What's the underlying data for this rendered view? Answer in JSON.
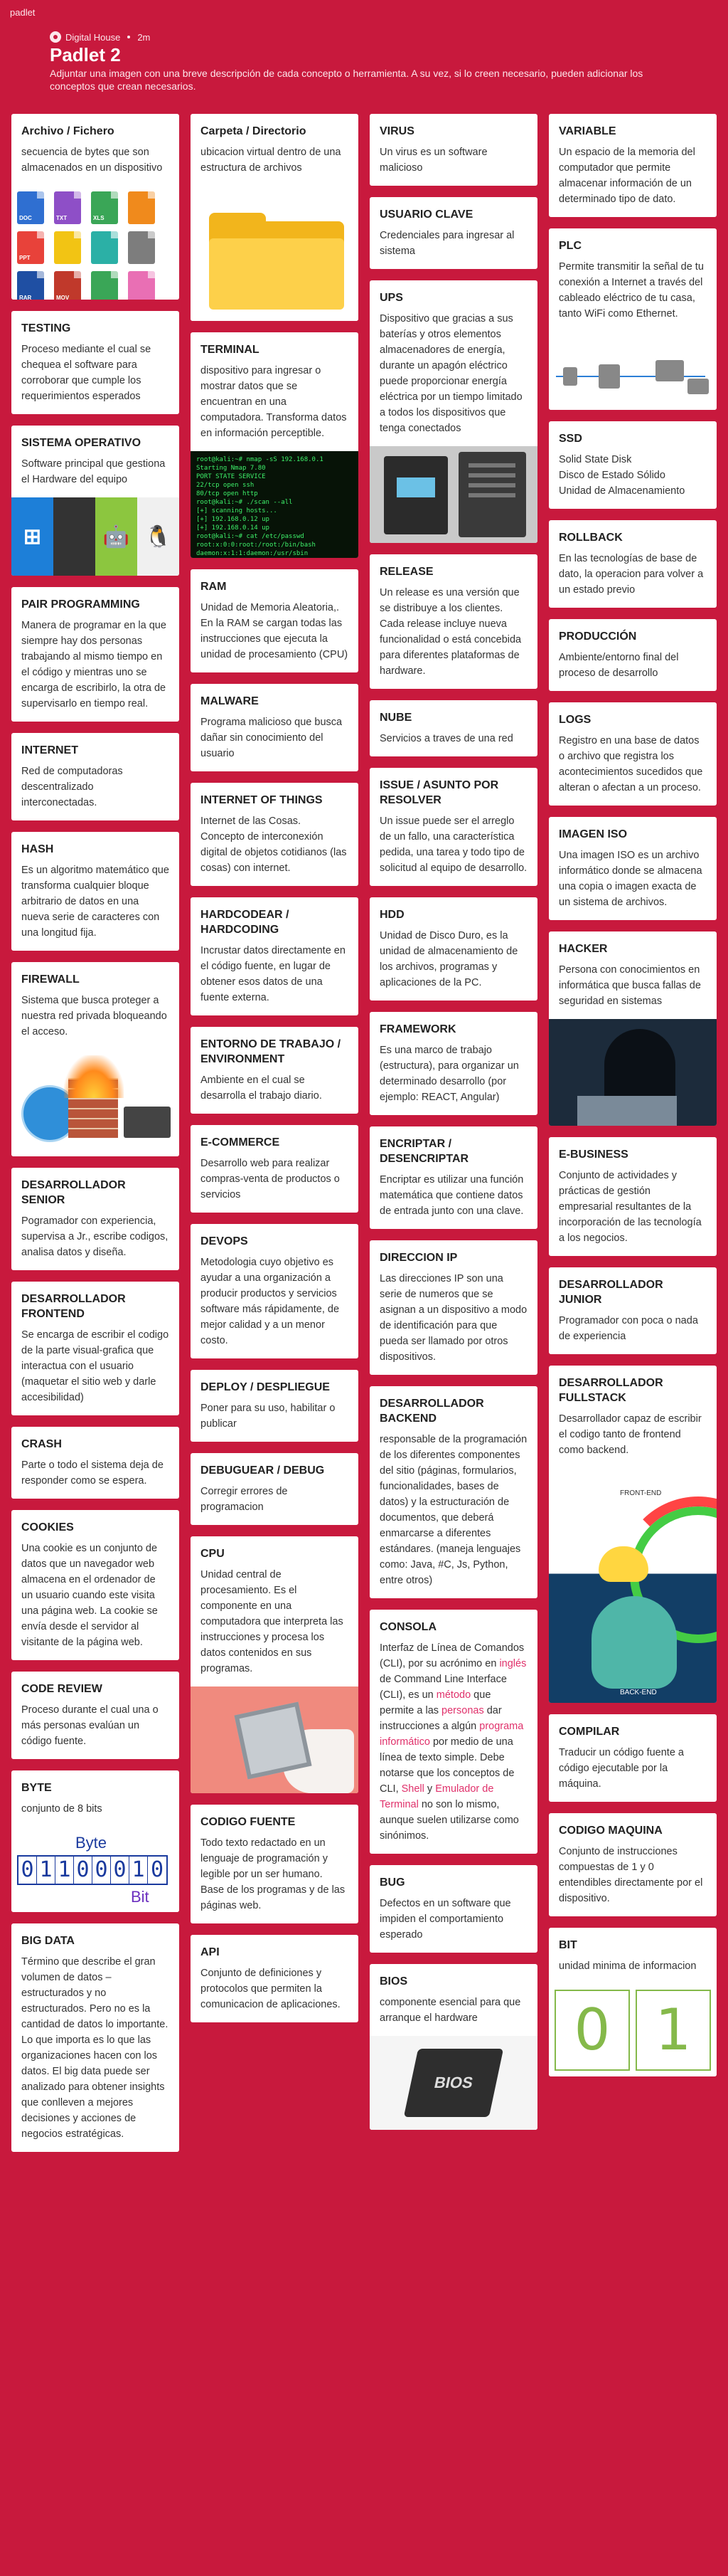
{
  "topbar": "padlet",
  "header": {
    "author": "Digital House",
    "time": "2m",
    "title": "Padlet 2",
    "description": "Adjuntar una imagen con una breve descripción de cada concepto o herramienta. A su vez, si lo creen necesario, pueden adicionar los conceptos que crean necesarios."
  },
  "icons": {
    "avatar": "digital-house-avatar",
    "windows": "⊞",
    "apple": "",
    "android": "🤖",
    "linux": "🐧"
  },
  "colors": {
    "background": "#c8193d",
    "highlight": "#e0316b"
  },
  "columns": [
    [
      {
        "title": "Archivo / Fichero",
        "body": "secuencia de bytes que son almacenados en un dispositivo",
        "image": "files"
      },
      {
        "title": "TESTING",
        "body": "Proceso mediante el cual se chequea el software para corroborar que cumple los requerimientos esperados"
      },
      {
        "title": "SISTEMA OPERATIVO",
        "body": "Software principal que gestiona el Hardware del equipo",
        "image": "os"
      },
      {
        "title": "PAIR PROGRAMMING",
        "body": "Manera de programar en la que siempre hay dos personas trabajando al mismo tiempo en el código y mientras uno se encarga de escribirlo,  la otra de supervisarlo en tiempo real."
      },
      {
        "title": "INTERNET",
        "body": "Red de computadoras descentralizado interconectadas."
      },
      {
        "title": "HASH",
        "body": "Es un algoritmo matemático que transforma cualquier bloque arbitrario de datos en una nueva serie de caracteres con una longitud fija."
      },
      {
        "title": "FIREWALL",
        "body": "Sistema que busca proteger a nuestra red privada bloqueando el acceso.",
        "image": "firewall"
      },
      {
        "title": "DESARROLLADOR SENIOR",
        "body": "Pogramador con experiencia, supervisa a Jr., escribe codigos, analisa datos y diseña."
      },
      {
        "title": "DESARROLLADOR FRONTEND",
        "body": "Se encarga de escribir el codigo de la parte visual-grafica que interactua con el usuario (maquetar el sitio web y darle accesibilidad)"
      },
      {
        "title": "CRASH",
        "body": "Parte o todo el sistema deja de responder como se espera."
      },
      {
        "title": "COOKIES",
        "body": "Una cookie es un conjunto de datos que un navegador web almacena en el ordenador de un usuario cuando este visita una página web. La cookie se envía desde el servidor al visitante de la página web."
      },
      {
        "title": "CODE REVIEW",
        "body": "Proceso durante el cual una o más personas evalúan un código fuente."
      },
      {
        "title": "BYTE",
        "body": "conjunto de 8 bits",
        "image": "byte"
      },
      {
        "title": "BIG DATA",
        "body": "Término que describe el gran volumen de datos – estructurados y no estructurados. Pero no es la cantidad de datos lo importante. Lo que importa es lo que las organizaciones hacen con los datos. El big data puede ser analizado para obtener insights que conlleven a mejores decisiones y acciones de negocios estratégicas."
      }
    ],
    [
      {
        "title": "Carpeta / Directorio",
        "body": "ubicacion virtual dentro de una estructura de archivos",
        "image": "folder"
      },
      {
        "title": "TERMINAL",
        "body": "dispositivo para ingresar o mostrar datos que se encuentran en una computadora. Transforma datos en información perceptible.",
        "image": "terminal"
      },
      {
        "title": "RAM",
        "body": "Unidad de Memoria Aleatoria,.\n En la RAM se cargan todas las instrucciones que ejecuta la unidad de procesamiento (CPU)"
      },
      {
        "title": "MALWARE",
        "body": "Programa malicioso que busca dañar sin conocimiento del usuario"
      },
      {
        "title": "INTERNET OF THINGS",
        "body": "Internet de las Cosas.\nConcepto de  interconexión digital de objetos cotidianos (las cosas) con internet."
      },
      {
        "title": "HARDCODEAR / HARDCODING",
        "body": "Incrustar datos directamente en el código fuente, en lugar de obtener esos datos de una fuente externa."
      },
      {
        "title": "ENTORNO DE TRABAJO / ENVIRONMENT",
        "body": "Ambiente en el cual se desarrolla el trabajo diario."
      },
      {
        "title": "E-COMMERCE",
        "body": "Desarrollo web para realizar compras-venta de productos o servicios"
      },
      {
        "title": "DEVOPS",
        "body": "Metodologia cuyo objetivo es ayudar a una organización a producir productos y servicios software más rápidamente, de mejor calidad y a un menor costo."
      },
      {
        "title": "DEPLOY / DESPLIEGUE",
        "body": "Poner para su uso, habilitar o publicar"
      },
      {
        "title": "DEBUGUEAR / DEBUG",
        "body": "Corregir errores de programacion"
      },
      {
        "title": "CPU",
        "body": "Unidad central de procesamiento. Es el componente en una computadora que interpreta las instrucciones y procesa los datos contenidos en sus programas.",
        "image": "cpu"
      },
      {
        "title": "CODIGO FUENTE",
        "body": "Todo texto redactado en un lenguaje de programación y legible por un ser humano. Base de los programas y de las páginas web."
      },
      {
        "title": "API",
        "body": "Conjunto de definiciones y protocolos que permiten la comunicacion de aplicaciones."
      }
    ],
    [
      {
        "title": "VIRUS",
        "body": "Un virus es un software malicioso"
      },
      {
        "title": "USUARIO CLAVE",
        "body": "Credenciales para ingresar al sistema"
      },
      {
        "title": "UPS",
        "body": " Dispositivo que gracias a sus baterías y otros elementos almacenadores de energía, durante un apagón eléctrico puede proporcionar energía eléctrica por un tiempo limitado a todos los dispositivos que tenga conectados",
        "image": "ups"
      },
      {
        "title": "RELEASE",
        "body": "Un release es una versión que se distribuye a los clientes. Cada release incluye nueva funcionalidad o está concebida para diferentes plataformas de hardware."
      },
      {
        "title": "NUBE",
        "body": "Servicios a traves de una red"
      },
      {
        "title": "ISSUE / ASUNTO POR RESOLVER",
        "body": "Un issue puede ser el arreglo de un fallo, una característica pedida, una tarea y todo tipo de solicitud al equipo de desarrollo."
      },
      {
        "title": "HDD",
        "body": "Unidad de Disco Duro, es la unidad de almacenamiento de los archivos, programas y aplicaciones de la PC."
      },
      {
        "title": "FRAMEWORK",
        "body": "Es una marco de trabajo (estructura), para organizar un determinado desarrollo (por ejemplo: REACT, Angular)"
      },
      {
        "title": "ENCRIPTAR / DESENCRIPTAR",
        "body": "Encriptar es utilizar una función matemática que contiene datos de entrada junto con una clave."
      },
      {
        "title": "DIRECCION IP",
        "body": "Las direcciones IP son una serie de numeros que se asignan a un dispositivo a modo de identificación para que pueda ser llamado por otros dispositivos."
      },
      {
        "title": "DESARROLLADOR BACKEND",
        "body": " responsable de la programación de los diferentes componentes del sitio (páginas, formularios, funcionalidades, bases de datos) y la estructuración de documentos, que deberá enmarcarse a diferentes estándares. (maneja lenguajes como: Java, #C, Js, Python, entre otros)"
      },
      {
        "title": "CONSOLA",
        "body_parts": [
          "Interfaz de Línea de Comandos (CLI), por su acrónimo en ",
          "inglés",
          " de Command Line Interface (CLI), es un ",
          "método",
          " que permite a las ",
          "personas",
          " dar instrucciones a algún ",
          "programa informático",
          " por medio de una línea de texto simple. Debe notarse que los conceptos de CLI, ",
          "Shell",
          " y ",
          "Emulador de Terminal",
          " no son lo mismo, aunque suelen utilizarse como sinónimos."
        ]
      },
      {
        "title": "BUG",
        "body": "Defectos en un software que impiden el comportamiento esperado"
      },
      {
        "title": "BIOS",
        "body": "componente esencial para que arranque el hardware",
        "image": "bios"
      }
    ],
    [
      {
        "title": "VARIABLE",
        "body": "Un espacio de la memoria del computador que permite almacenar información de un determinado tipo de dato."
      },
      {
        "title": "PLC",
        "body": "Permite transmitir la señal de tu conexión a Internet a través del cableado eléctrico de tu casa, tanto WiFi como Ethernet.",
        "image": "plc"
      },
      {
        "title": "SSD",
        "body": "Solid State Disk\nDisco de Estado Sólido\nUnidad de Almacenamiento"
      },
      {
        "title": "ROLLBACK",
        "body": "En las tecnologías de base de dato, la operacion para volver a un estado previo"
      },
      {
        "title": "PRODUCCIÓN",
        "body": "Ambiente/entorno final del proceso de desarrollo"
      },
      {
        "title": "LOGS",
        "body": "Registro en una base de datos o archivo que registra los acontecimientos sucedidos que alteran o afectan a un proceso."
      },
      {
        "title": "IMAGEN ISO",
        "body": "Una imagen ISO es un archivo informático donde se almacena una copia o imagen exacta de un sistema de archivos."
      },
      {
        "title": "HACKER",
        "body": "Persona con conocimientos en informática que busca fallas de seguridad en sistemas",
        "image": "hacker"
      },
      {
        "title": "E-BUSINESS",
        "body": "Conjunto de actividades y prácticas de gestión empresarial resultantes de la incorporación de las tecnología a los negocios."
      },
      {
        "title": "DESARROLLADOR JUNIOR",
        "body": "Programador con poca o nada de experiencia"
      },
      {
        "title": "DESARROLLADOR FULLSTACK",
        "body": "Desarrollador capaz de escribir el codigo tanto de frontend como backend.",
        "image": "fullstack"
      },
      {
        "title": "COMPILAR",
        "body": "Traducir un código fuente a código ejecutable por la máquina."
      },
      {
        "title": "CODIGO MAQUINA",
        "body": "Conjunto de instrucciones compuestas de 1 y 0 entendibles directamente por el dispositivo."
      },
      {
        "title": "BIT",
        "body": "unidad minima de informacion",
        "image": "bit"
      }
    ]
  ],
  "images": {
    "files_labels": [
      "DOC",
      "TXT",
      "XLS",
      "",
      "PPT",
      "",
      "",
      "",
      "RAR",
      "MOV",
      "",
      "",
      "",
      "",
      "HTML",
      ""
    ],
    "terminal_lines": [
      "root@kali:~# nmap -sS 192.168.0.1",
      "Starting Nmap 7.80",
      "PORT   STATE SERVICE",
      "22/tcp open  ssh",
      "80/tcp open  http",
      "root@kali:~# ./scan --all",
      "[+] scanning hosts...",
      "[+] 192.168.0.12 up",
      "[+] 192.168.0.14 up",
      "root@kali:~# cat /etc/passwd",
      "root:x:0:0:root:/root:/bin/bash",
      "daemon:x:1:1:daemon:/usr/sbin"
    ],
    "byte_label": "Byte",
    "byte_bits": [
      "0",
      "1",
      "1",
      "0",
      "0",
      "0",
      "1",
      "0"
    ],
    "bit_label": "Bit",
    "bios_label": "BIOS",
    "bit_digits": [
      "0",
      "1"
    ],
    "fullstack_top": "FRONT-END",
    "fullstack_bottom": "BACK-END"
  }
}
